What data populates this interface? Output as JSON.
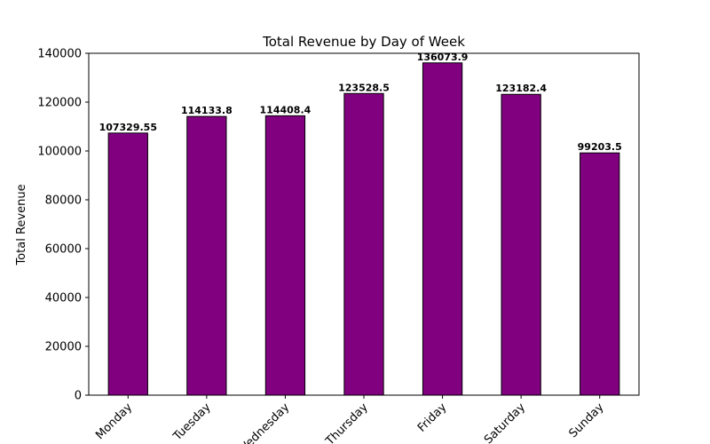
{
  "chart_data": {
    "type": "bar",
    "title": "Total Revenue by Day of Week",
    "xlabel": "",
    "ylabel": "Total Revenue",
    "categories": [
      "Monday",
      "Tuesday",
      "Wednesday",
      "Thursday",
      "Friday",
      "Saturday",
      "Sunday"
    ],
    "values": [
      107329.55,
      114133.8,
      114408.4,
      123528.5,
      136073.9,
      123182.4,
      99203.5
    ],
    "value_labels": [
      "107329.55",
      "114133.8",
      "114408.4",
      "123528.5",
      "136073.9",
      "123182.4",
      "99203.5"
    ],
    "ylim": [
      0,
      140000
    ],
    "yticks": [
      0,
      20000,
      40000,
      60000,
      80000,
      100000,
      120000,
      140000
    ],
    "bar_color": "#800080",
    "edge_color": "#000000",
    "grid": false,
    "legend": "none"
  }
}
